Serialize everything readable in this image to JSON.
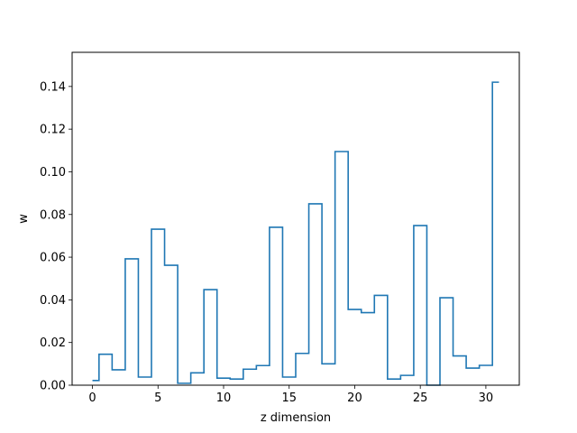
{
  "chart_data": {
    "type": "line",
    "step": "mid",
    "xlabel": "z dimension",
    "ylabel": "w",
    "xlim": [
      -1.55,
      32.55
    ],
    "ylim": [
      0,
      0.156
    ],
    "xticks": [
      0,
      5,
      10,
      15,
      20,
      25,
      30
    ],
    "yticks": [
      0.0,
      0.02,
      0.04,
      0.06,
      0.08,
      0.1,
      0.12,
      0.14
    ],
    "ytick_labels": [
      "0.00",
      "0.02",
      "0.04",
      "0.06",
      "0.08",
      "0.10",
      "0.12",
      "0.14"
    ],
    "grid": false,
    "series": [
      {
        "color": "#1f77b4",
        "x": [
          0,
          1,
          2,
          3,
          4,
          5,
          6,
          7,
          8,
          9,
          10,
          11,
          12,
          13,
          14,
          15,
          16,
          17,
          18,
          19,
          20,
          21,
          22,
          23,
          24,
          25,
          26,
          27,
          28,
          29,
          30,
          31
        ],
        "values": [
          0.0022,
          0.0145,
          0.0072,
          0.0592,
          0.0038,
          0.0731,
          0.0562,
          0.0009,
          0.0058,
          0.0448,
          0.0033,
          0.0029,
          0.0075,
          0.0092,
          0.074,
          0.0038,
          0.0149,
          0.085,
          0.01,
          0.1095,
          0.0355,
          0.034,
          0.0421,
          0.0029,
          0.0046,
          0.0748,
          0.0,
          0.041,
          0.0137,
          0.008,
          0.0093,
          0.142
        ]
      }
    ]
  }
}
